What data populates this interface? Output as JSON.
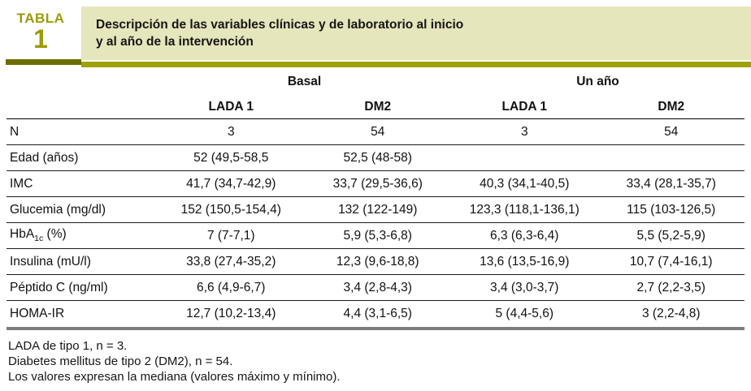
{
  "header": {
    "tabla_word": "TABLA",
    "tabla_number": "1",
    "title_line1": "Descripción de las variables clínicas y de laboratorio al inicio",
    "title_line2": "y al año de la intervención"
  },
  "table": {
    "group_headers": [
      "Basal",
      "Un año"
    ],
    "column_headers": [
      "LADA 1",
      "DM2",
      "LADA 1",
      "DM2"
    ],
    "rows": [
      {
        "label": "N",
        "values": [
          "3",
          "54",
          "3",
          "54"
        ]
      },
      {
        "label": "Edad (años)",
        "values": [
          "52 (49,5-58,5",
          "52,5 (48-58)",
          "",
          ""
        ]
      },
      {
        "label": "IMC",
        "values": [
          "41,7 (34,7-42,9)",
          "33,7 (29,5-36,6)",
          "40,3 (34,1-40,5)",
          "33,4 (28,1-35,7)"
        ]
      },
      {
        "label": "Glucemia (mg/dl)",
        "values": [
          "152 (150,5-154,4)",
          "132 (122-149)",
          "123,3 (118,1-136,1)",
          "115 (103-126,5)"
        ]
      },
      {
        "label_pre": "HbA",
        "label_sub": "1c",
        "label_post": " (%)",
        "values": [
          "7 (7-7,1)",
          "5,9 (5,3-6,8)",
          "6,3 (6,3-6,4)",
          "5,5 (5,2-5,9)"
        ]
      },
      {
        "label": "Insulina (mU/l)",
        "values": [
          "33,8 (27,4-35,2)",
          "12,3 (9,6-18,8)",
          "13,6 (13,5-16,9)",
          "10,7 (7,4-16,1)"
        ]
      },
      {
        "label": "Péptido C (ng/ml)",
        "values": [
          "6,6 (4,9-6,7)",
          "3,4 (2,8-4,3)",
          "3,4 (3,0-3,7)",
          "2,7 (2,2-3,5)"
        ]
      },
      {
        "label": "HOMA-IR",
        "values": [
          "12,7 (10,2-13,4)",
          "4,4 (3,1-6,5)",
          "5 (4,4-5,6)",
          "3 (2,2-4,8)"
        ]
      }
    ]
  },
  "footnotes": [
    "LADA de tipo 1, n = 3.",
    "Diabetes mellitus de tipo 2 (DM2), n = 54.",
    "Los valores expresan la mediana (valores máximo y mínimo)."
  ],
  "colors": {
    "olive": "#9a9b08",
    "olive_bar": "#a0a106",
    "dark_olive_bar": "#6c6d00",
    "khaki_bg": "#e5e6bc",
    "bottom_bar": "#7d7d7d"
  }
}
